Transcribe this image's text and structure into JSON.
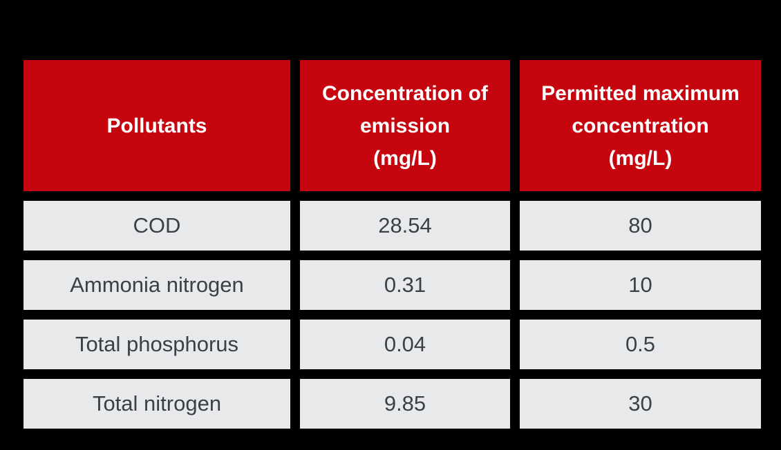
{
  "colors": {
    "page_bg": "#000000",
    "header_bg": "#c6060f",
    "header_text": "#ffffff",
    "cell_bg": "#e8e9eb",
    "body_text": "#3b4047"
  },
  "table": {
    "headers": [
      "Pollutants",
      "Concentration of\nemission\n(mg/L)",
      "Permitted maximum\nconcentration\n(mg/L)"
    ]
  },
  "chart_data": {
    "type": "table",
    "columns": [
      "Pollutants",
      "Concentration of emission (mg/L)",
      "Permitted maximum concentration (mg/L)"
    ],
    "rows": [
      [
        "COD",
        "28.54",
        "80"
      ],
      [
        "Ammonia nitrogen",
        "0.31",
        "10"
      ],
      [
        "Total phosphorus",
        "0.04",
        "0.5"
      ],
      [
        "Total nitrogen",
        "9.85",
        "30"
      ]
    ]
  }
}
